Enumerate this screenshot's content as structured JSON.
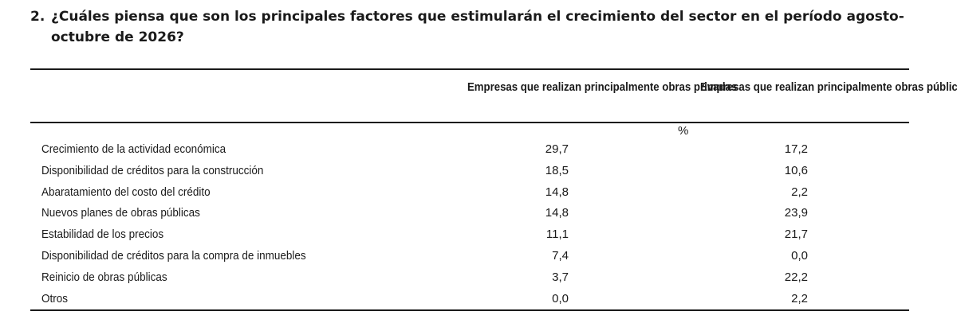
{
  "question": {
    "number": "2.",
    "text": "¿Cuáles piensa que son los principales factores que estimularán el crecimiento del sector en el período agosto-octubre de 2026?"
  },
  "table": {
    "columns": [
      "Empresas que realizan principalmente obras privadas",
      "Empresas que realizan principalmente obras públicas"
    ],
    "unit": "%",
    "rows": [
      {
        "label": "Crecimiento de la actividad económica",
        "privadas": "29,7",
        "publicas": "17,2"
      },
      {
        "label": "Disponibilidad de créditos para la construcción",
        "privadas": "18,5",
        "publicas": "10,6"
      },
      {
        "label": "Abaratamiento del costo del crédito",
        "privadas": "14,8",
        "publicas": "2,2"
      },
      {
        "label": "Nuevos planes de obras públicas",
        "privadas": "14,8",
        "publicas": "23,9"
      },
      {
        "label": "Estabilidad de los precios",
        "privadas": "11,1",
        "publicas": "21,7"
      },
      {
        "label": "Disponibilidad de créditos para la compra de inmuebles",
        "privadas": "7,4",
        "publicas": "0,0"
      },
      {
        "label": "Reinicio de obras públicas",
        "privadas": "3,7",
        "publicas": "22,2"
      },
      {
        "label": "Otros",
        "privadas": "0,0",
        "publicas": "2,2"
      }
    ]
  }
}
